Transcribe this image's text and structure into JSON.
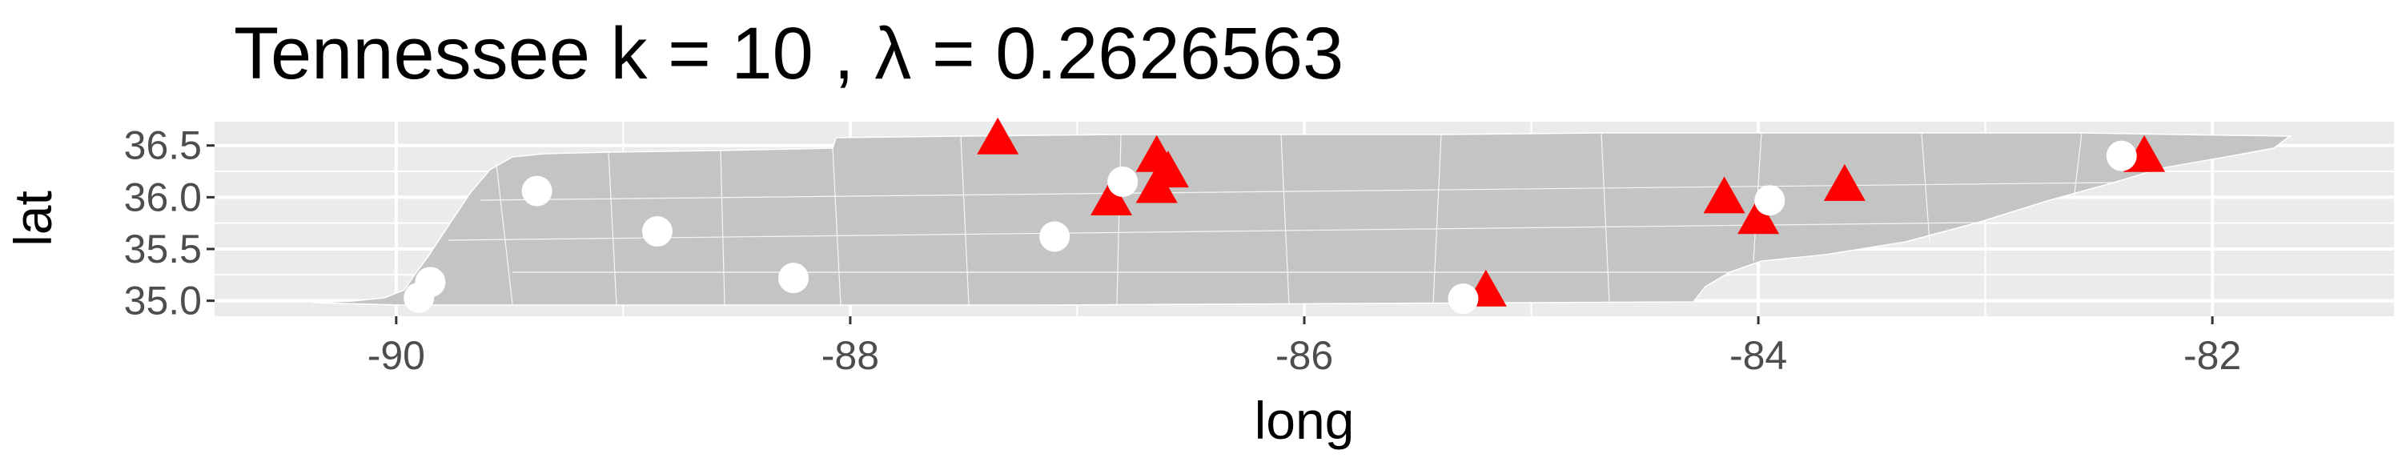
{
  "chart_data": {
    "type": "scatter",
    "title": "Tennessee  k =  10 ,  λ  =  0.2626563",
    "xlabel": "long",
    "ylabel": "lat",
    "xlim": [
      -90.8,
      -81.2
    ],
    "ylim": [
      34.85,
      36.73
    ],
    "x_ticks": [
      -90,
      -88,
      -86,
      -84,
      -82
    ],
    "x_tick_labels": [
      "-90",
      "-88",
      "-86",
      "-84",
      "-82"
    ],
    "y_ticks": [
      35.0,
      35.5,
      36.0,
      36.5
    ],
    "y_tick_labels": [
      "35.0",
      "35.5",
      "36.0",
      "36.5"
    ],
    "grid": true,
    "legend": "none",
    "colors": {
      "panel": "#ebebeb",
      "grid": "#ffffff",
      "state_fill": "#c4c4c4",
      "state_lines": "#ffffff",
      "triangles": "#ff0000",
      "circles": "#ffffff"
    },
    "series": [
      {
        "marker": "triangle",
        "color": "#ff0000",
        "points": [
          [
            -87.35,
            36.55
          ],
          [
            -86.65,
            36.38
          ],
          [
            -86.6,
            36.23
          ],
          [
            -86.65,
            36.08
          ],
          [
            -86.85,
            35.96
          ],
          [
            -85.2,
            35.08
          ],
          [
            -84.15,
            35.98
          ],
          [
            -84.0,
            35.78
          ],
          [
            -83.62,
            36.1
          ],
          [
            -82.3,
            36.38
          ]
        ]
      },
      {
        "marker": "circle",
        "color": "#ffffff",
        "points": [
          [
            -89.38,
            36.06
          ],
          [
            -88.85,
            35.67
          ],
          [
            -88.25,
            35.22
          ],
          [
            -89.85,
            35.18
          ],
          [
            -89.9,
            35.03
          ],
          [
            -87.1,
            35.62
          ],
          [
            -86.8,
            36.15
          ],
          [
            -85.3,
            35.02
          ],
          [
            -83.95,
            35.97
          ],
          [
            -82.4,
            36.4
          ]
        ]
      }
    ]
  }
}
